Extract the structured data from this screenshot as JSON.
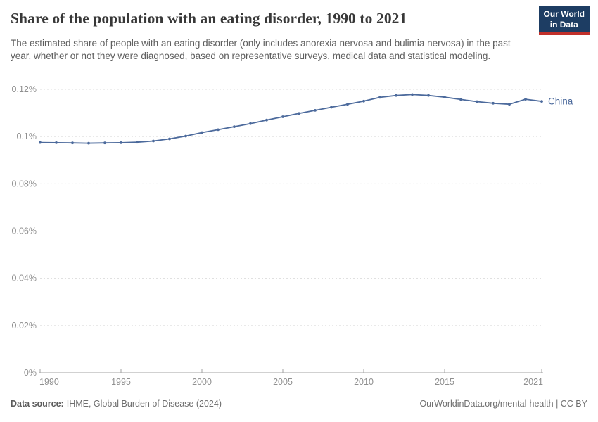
{
  "header": {
    "title": "Share of the population with an eating disorder, 1990 to 2021",
    "subtitle": "The estimated share of people with an eating disorder (only includes anorexia nervosa and bulimia nervosa) in the past year, whether or not they were diagnosed, based on representative surveys, medical data and statistical modeling.",
    "logo": {
      "line1": "Our World",
      "line2": "in Data",
      "bg": "#1d3d63",
      "accent": "#c1302b"
    }
  },
  "chart_data": {
    "type": "line",
    "title": "Share of the population with an eating disorder, 1990 to 2021",
    "xlabel": "",
    "ylabel": "",
    "xlim": [
      1990,
      2021
    ],
    "ylim": [
      0,
      0.12
    ],
    "grid": "horizontal-dashed",
    "legend_position": "end-of-line-label",
    "x": [
      1990,
      1991,
      1992,
      1993,
      1994,
      1995,
      1996,
      1997,
      1998,
      1999,
      2000,
      2001,
      2002,
      2003,
      2004,
      2005,
      2006,
      2007,
      2008,
      2009,
      2010,
      2011,
      2012,
      2013,
      2014,
      2015,
      2016,
      2017,
      2018,
      2019,
      2020,
      2021
    ],
    "series": [
      {
        "name": "China",
        "color": "#4c6a9c",
        "values": [
          0.0975,
          0.0974,
          0.0973,
          0.0972,
          0.0973,
          0.0974,
          0.0976,
          0.0981,
          0.099,
          0.1002,
          0.1017,
          0.1029,
          0.1042,
          0.1055,
          0.107,
          0.1084,
          0.1098,
          0.1111,
          0.1124,
          0.1137,
          0.115,
          0.1166,
          0.1174,
          0.1178,
          0.1174,
          0.1167,
          0.1157,
          0.1148,
          0.1141,
          0.1137,
          0.1158,
          0.1149
        ]
      }
    ],
    "xticks": [
      {
        "v": 1990,
        "label": "1990"
      },
      {
        "v": 1995,
        "label": "1995"
      },
      {
        "v": 2000,
        "label": "2000"
      },
      {
        "v": 2005,
        "label": "2005"
      },
      {
        "v": 2010,
        "label": "2010"
      },
      {
        "v": 2015,
        "label": "2015"
      },
      {
        "v": 2021,
        "label": "2021"
      }
    ],
    "yticks": [
      {
        "v": 0,
        "label": "0%"
      },
      {
        "v": 0.02,
        "label": "0.02%"
      },
      {
        "v": 0.04,
        "label": "0.04%"
      },
      {
        "v": 0.06,
        "label": "0.06%"
      },
      {
        "v": 0.08,
        "label": "0.08%"
      },
      {
        "v": 0.1,
        "label": "0.1%"
      },
      {
        "v": 0.12,
        "label": "0.12%"
      }
    ],
    "colors": {
      "gridline": "#dcdcdc",
      "axis": "#a3a3a3",
      "tick_label": "#8f8f8f"
    }
  },
  "footer": {
    "datasource_label": "Data source:",
    "datasource_value": "IHME, Global Burden of Disease (2024)",
    "credit": "OurWorldinData.org/mental-health | CC BY"
  }
}
